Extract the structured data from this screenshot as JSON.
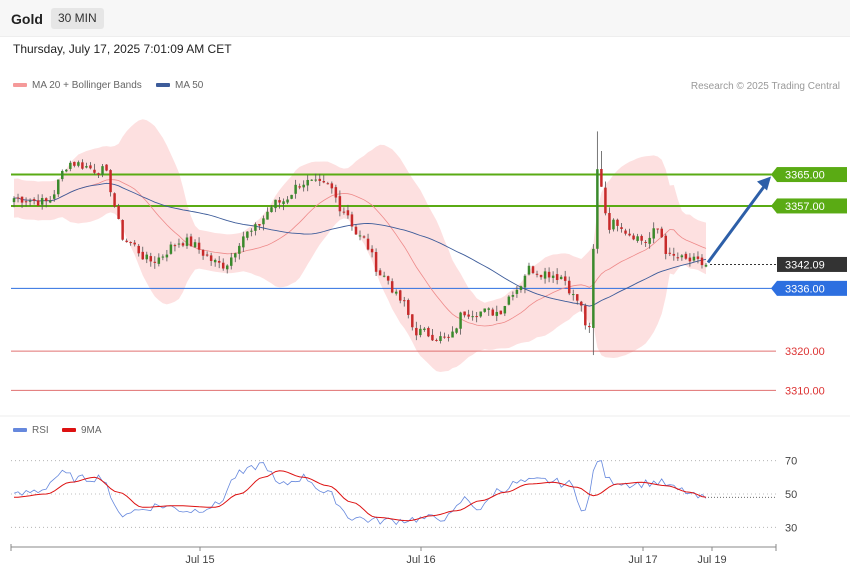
{
  "header": {
    "title": "Gold",
    "timeframe": "30 MIN"
  },
  "datetime": "Thursday, July 17, 2025 7:01:09 AM CET",
  "legend": {
    "ma20": "MA 20 + Bollinger Bands",
    "ma50": "MA 50"
  },
  "copyright": "Research © 2025 Trading Central",
  "rsi_legend": {
    "rsi": "RSI",
    "ma9": "9MA"
  },
  "colors": {
    "up": "#3a8a2c",
    "down": "#c72a2a",
    "band": "#fddada",
    "ma20": "#ee8a8a",
    "ma50": "#3d5c9a",
    "resistance": "#5aab14",
    "support_blue": "#2d6fe0",
    "support_red": "#e07070",
    "arrow": "#2d5fa8",
    "price_tag": "#333333"
  },
  "chart_data": [
    {
      "type": "candlestick",
      "title": "Gold 30 MIN",
      "ylim": [
        3305,
        3384
      ],
      "x_tick_labels": [
        "Jul 15",
        "Jul 16",
        "Jul 17",
        "Jul 19"
      ],
      "price_levels": [
        {
          "value": 3365.0,
          "label": "3365.00",
          "kind": "resistance"
        },
        {
          "value": 3357.0,
          "label": "3357.00",
          "kind": "resistance"
        },
        {
          "value": 3342.09,
          "label": "3342.09",
          "kind": "current"
        },
        {
          "value": 3336.0,
          "label": "3336.00",
          "kind": "support"
        },
        {
          "value": 3320.0,
          "label": "3320.00",
          "kind": "support2"
        },
        {
          "value": 3310.0,
          "label": "3310.00",
          "kind": "support2"
        }
      ],
      "projection": {
        "from": 3342.09,
        "to": 3365.0
      },
      "anchors": [
        [
          0,
          3359
        ],
        [
          8,
          3358
        ],
        [
          14,
          3368
        ],
        [
          22,
          3366
        ],
        [
          28,
          3348
        ],
        [
          34,
          3343
        ],
        [
          42,
          3348
        ],
        [
          52,
          3342
        ],
        [
          58,
          3350
        ],
        [
          66,
          3358
        ],
        [
          72,
          3363
        ],
        [
          78,
          3362
        ],
        [
          82,
          3356
        ],
        [
          86,
          3349
        ],
        [
          92,
          3339
        ],
        [
          96,
          3333
        ],
        [
          100,
          3325
        ],
        [
          108,
          3323
        ],
        [
          112,
          3330
        ],
        [
          120,
          3330
        ],
        [
          125,
          3336
        ],
        [
          128,
          3341
        ],
        [
          132,
          3340
        ],
        [
          136,
          3339
        ],
        [
          140,
          3333
        ],
        [
          143,
          3325
        ],
        [
          145,
          3366
        ],
        [
          148,
          3352
        ],
        [
          150,
          3353
        ],
        [
          153,
          3350
        ],
        [
          157,
          3348
        ],
        [
          160,
          3351
        ],
        [
          163,
          3344
        ],
        [
          168,
          3343
        ],
        [
          172,
          3342
        ]
      ],
      "bb_width": 9,
      "ma20_period": 20,
      "ma50_period": 50
    },
    {
      "type": "line",
      "title": "RSI",
      "ylim": [
        20,
        80
      ],
      "y_ticks": [
        70,
        50,
        30
      ],
      "series": [
        {
          "name": "RSI",
          "anchors": [
            [
              0,
              49
            ],
            [
              6,
              52
            ],
            [
              12,
              62
            ],
            [
              16,
              59
            ],
            [
              22,
              60
            ],
            [
              26,
              38
            ],
            [
              30,
              40
            ],
            [
              36,
              43
            ],
            [
              44,
              40
            ],
            [
              50,
              43
            ],
            [
              56,
              62
            ],
            [
              62,
              68
            ],
            [
              66,
              55
            ],
            [
              72,
              60
            ],
            [
              78,
              50
            ],
            [
              84,
              36
            ],
            [
              90,
              34
            ],
            [
              94,
              34
            ],
            [
              100,
              35
            ],
            [
              108,
              36
            ],
            [
              112,
              47
            ],
            [
              116,
              41
            ],
            [
              120,
              52
            ],
            [
              126,
              57
            ],
            [
              132,
              58
            ],
            [
              138,
              56
            ],
            [
              142,
              40
            ],
            [
              145,
              71
            ],
            [
              148,
              58
            ],
            [
              154,
              56
            ],
            [
              160,
              57
            ],
            [
              166,
              52
            ],
            [
              170,
              48
            ],
            [
              172,
              47
            ]
          ]
        },
        {
          "name": "9MA",
          "anchors": [
            [
              0,
              48
            ],
            [
              8,
              50
            ],
            [
              14,
              57
            ],
            [
              20,
              60
            ],
            [
              26,
              51
            ],
            [
              32,
              42
            ],
            [
              40,
              43
            ],
            [
              50,
              42
            ],
            [
              56,
              50
            ],
            [
              62,
              60
            ],
            [
              66,
              64
            ],
            [
              72,
              60
            ],
            [
              78,
              55
            ],
            [
              84,
              45
            ],
            [
              90,
              36
            ],
            [
              98,
              34
            ],
            [
              104,
              37
            ],
            [
              110,
              40
            ],
            [
              116,
              46
            ],
            [
              122,
              51
            ],
            [
              128,
              56
            ],
            [
              134,
              57
            ],
            [
              140,
              54
            ],
            [
              144,
              49
            ],
            [
              150,
              56
            ],
            [
              156,
              57
            ],
            [
              162,
              55
            ],
            [
              168,
              51
            ],
            [
              172,
              48
            ]
          ]
        }
      ]
    }
  ]
}
